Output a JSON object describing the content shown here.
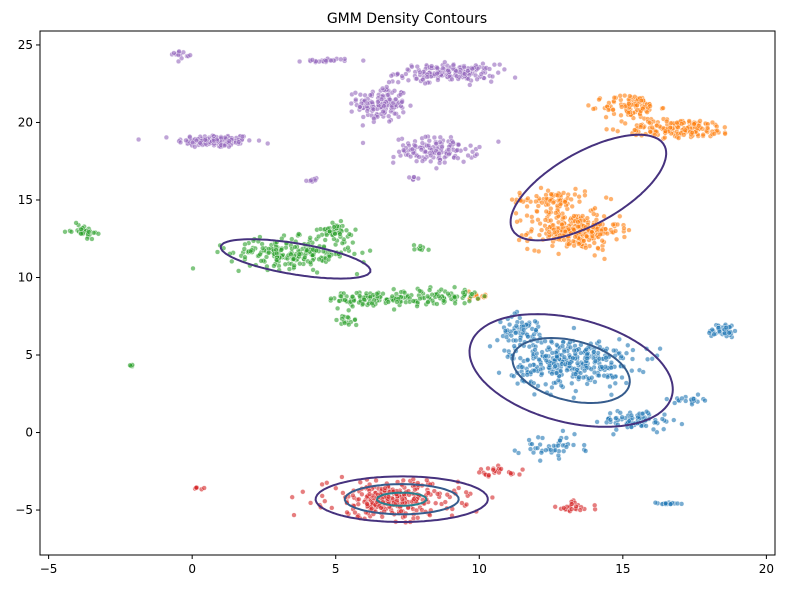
{
  "chart_data": {
    "type": "scatter",
    "title": "GMM Density Contours",
    "xlabel": "",
    "ylabel": "",
    "xlim": [
      -5.3,
      20.3
    ],
    "ylim": [
      -7.9,
      25.9
    ],
    "x_ticks": [
      -5,
      0,
      5,
      10,
      15,
      20
    ],
    "y_ticks": [
      -5,
      0,
      5,
      10,
      15,
      20,
      25
    ],
    "x_tick_labels": [
      "−5",
      "0",
      "5",
      "10",
      "15",
      "20"
    ],
    "y_tick_labels": [
      "−5",
      "0",
      "5",
      "10",
      "15",
      "20",
      "25"
    ],
    "grid": false,
    "legend": false,
    "series": [
      {
        "color": "#9467bd",
        "clusters": [
          {
            "center": [
              0.8,
              18.8
            ],
            "spread": [
              1.1,
              0.35
            ],
            "n": 140
          },
          {
            "center": [
              6.6,
              21.2
            ],
            "spread": [
              0.7,
              1.0
            ],
            "n": 150
          },
          {
            "center": [
              8.9,
              23.2
            ],
            "spread": [
              1.4,
              0.45
            ],
            "n": 170
          },
          {
            "center": [
              8.5,
              18.2
            ],
            "spread": [
              1.2,
              0.7
            ],
            "n": 130
          },
          {
            "center": [
              4.7,
              24.0
            ],
            "spread": [
              0.7,
              0.12
            ],
            "n": 25
          },
          {
            "center": [
              -0.4,
              24.4
            ],
            "spread": [
              0.25,
              0.2
            ],
            "n": 15
          },
          {
            "center": [
              4.2,
              16.3
            ],
            "spread": [
              0.15,
              0.12
            ],
            "n": 8
          },
          {
            "center": [
              7.7,
              16.4
            ],
            "spread": [
              0.1,
              0.15
            ],
            "n": 6
          }
        ]
      },
      {
        "color": "#ff7f0e",
        "clusters": [
          {
            "center": [
              13.3,
              13.0
            ],
            "spread": [
              1.3,
              1.0
            ],
            "n": 260
          },
          {
            "center": [
              15.3,
              21.0
            ],
            "spread": [
              0.8,
              0.7
            ],
            "n": 100
          },
          {
            "center": [
              17.0,
              19.6
            ],
            "spread": [
              1.6,
              0.5
            ],
            "n": 160
          },
          {
            "center": [
              12.5,
              15.0
            ],
            "spread": [
              1.0,
              0.6
            ],
            "n": 80
          },
          {
            "center": [
              10.0,
              8.8
            ],
            "spread": [
              0.3,
              0.3
            ],
            "n": 12
          }
        ]
      },
      {
        "color": "#2ca02c",
        "clusters": [
          {
            "center": [
              3.5,
              11.6
            ],
            "spread": [
              1.8,
              0.8
            ],
            "n": 220
          },
          {
            "center": [
              5.0,
              13.0
            ],
            "spread": [
              0.5,
              0.4
            ],
            "n": 50
          },
          {
            "center": [
              6.5,
              8.6
            ],
            "spread": [
              1.5,
              0.45
            ],
            "n": 120
          },
          {
            "center": [
              8.8,
              8.8
            ],
            "spread": [
              0.9,
              0.4
            ],
            "n": 60
          },
          {
            "center": [
              -3.8,
              13.0
            ],
            "spread": [
              0.35,
              0.35
            ],
            "n": 35
          },
          {
            "center": [
              -2.1,
              4.3
            ],
            "spread": [
              0.08,
              0.08
            ],
            "n": 5
          },
          {
            "center": [
              8.0,
              11.9
            ],
            "spread": [
              0.3,
              0.2
            ],
            "n": 8
          },
          {
            "center": [
              5.4,
              7.2
            ],
            "spread": [
              0.3,
              0.3
            ],
            "n": 15
          }
        ]
      },
      {
        "color": "#1f77b4",
        "clusters": [
          {
            "center": [
              13.2,
              4.5
            ],
            "spread": [
              1.8,
              1.3
            ],
            "n": 330
          },
          {
            "center": [
              11.5,
              6.5
            ],
            "spread": [
              0.7,
              0.9
            ],
            "n": 70
          },
          {
            "center": [
              15.5,
              0.8
            ],
            "spread": [
              1.0,
              0.5
            ],
            "n": 80
          },
          {
            "center": [
              18.5,
              6.6
            ],
            "spread": [
              0.45,
              0.4
            ],
            "n": 40
          },
          {
            "center": [
              17.3,
              2.1
            ],
            "spread": [
              0.4,
              0.2
            ],
            "n": 20
          },
          {
            "center": [
              12.5,
              -0.9
            ],
            "spread": [
              1.0,
              0.6
            ],
            "n": 45
          },
          {
            "center": [
              16.5,
              -4.6
            ],
            "spread": [
              0.4,
              0.08
            ],
            "n": 15
          }
        ]
      },
      {
        "color": "#d62728",
        "clusters": [
          {
            "center": [
              7.0,
              -4.3
            ],
            "spread": [
              1.9,
              1.0
            ],
            "n": 300
          },
          {
            "center": [
              10.5,
              -2.6
            ],
            "spread": [
              0.9,
              0.3
            ],
            "n": 25
          },
          {
            "center": [
              13.3,
              -4.8
            ],
            "spread": [
              0.5,
              0.35
            ],
            "n": 25
          },
          {
            "center": [
              0.3,
              -3.6
            ],
            "spread": [
              0.25,
              0.1
            ],
            "n": 6
          }
        ]
      }
    ],
    "contours": {
      "levels": [
        0.002,
        0.006,
        0.012,
        0.02,
        0.03,
        0.042
      ],
      "level_colors": [
        "#46327e",
        "#365c8d",
        "#277f8e",
        "#1fa187",
        "#4ac16d",
        "#bddf26"
      ],
      "components": [
        {
          "weight": 0.1,
          "mean": [
            7.3,
            -4.3
          ],
          "cov": [
            [
              2.3,
              0.0
            ],
            [
              0.0,
              0.55
            ]
          ]
        },
        {
          "weight": 0.24,
          "mean": [
            13.2,
            4.0
          ],
          "cov": [
            [
              3.8,
              -1.3
            ],
            [
              -1.3,
              4.0
            ]
          ]
        },
        {
          "weight": 0.12,
          "mean": [
            13.8,
            15.8
          ],
          "cov": [
            [
              3.8,
              3.1
            ],
            [
              3.1,
              6.0
            ]
          ]
        },
        {
          "weight": 0.05,
          "mean": [
            3.6,
            11.2
          ],
          "cov": [
            [
              5.5,
              -1.6
            ],
            [
              -1.6,
              1.3
            ]
          ]
        },
        {
          "weight": 0.02,
          "mean": [
            5.0,
            20.2
          ],
          "cov": [
            [
              9.0,
              0.3
            ],
            [
              0.3,
              1.7
            ]
          ]
        }
      ]
    }
  }
}
